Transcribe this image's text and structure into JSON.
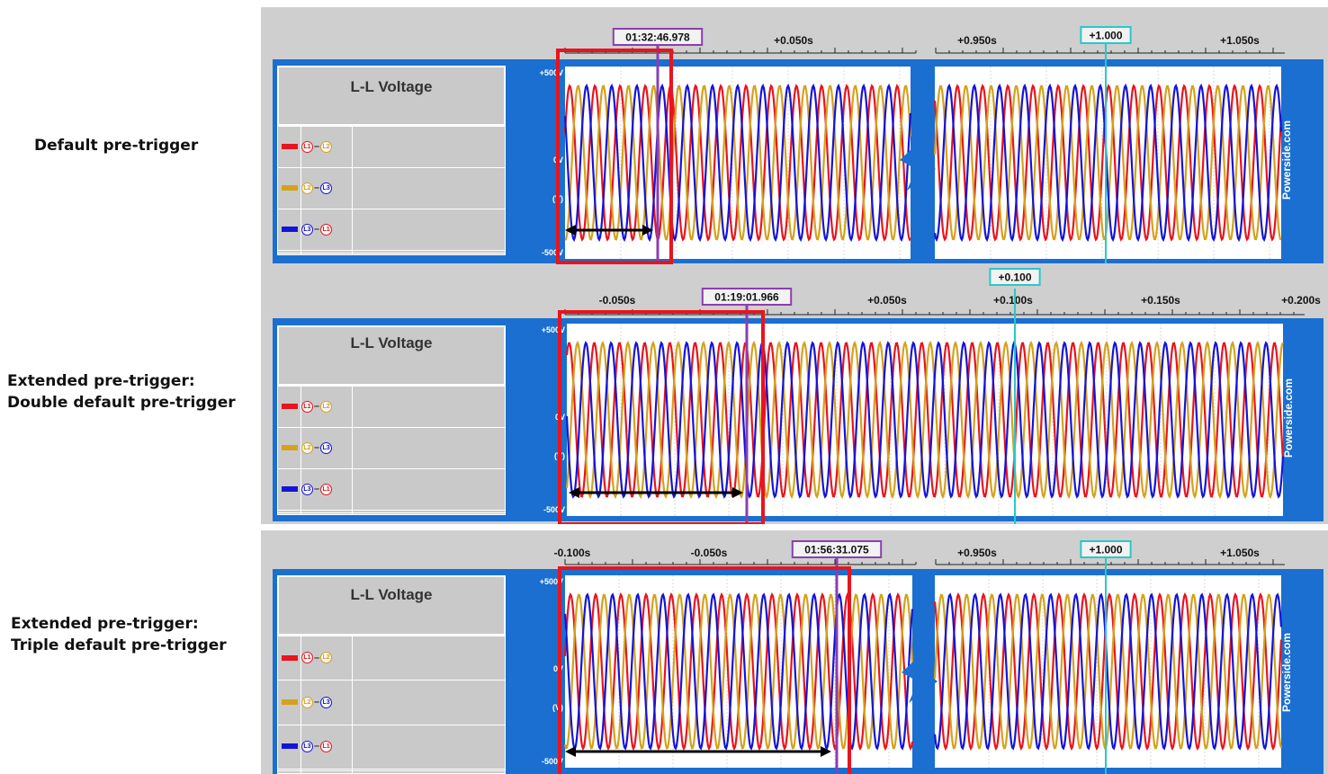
{
  "side_labels": {
    "default": "Default pre-trigger",
    "double_line1": "Extended pre-trigger:",
    "double_line2": "Double default pre-trigger",
    "triple_line1": "Extended pre-trigger:",
    "triple_line2": "Triple default pre-trigger"
  },
  "colors": {
    "l1_l2": "#e8141e",
    "l2_l3": "#d4a21c",
    "l3_l1": "#1414d8",
    "frame": "#1a6fd0",
    "trigger_cursor": "#8a3fb0",
    "reference_cursor": "#28c8c8",
    "highlight": "#e8141e"
  },
  "chart_data": [
    {
      "type": "line",
      "title": "L-L Voltage",
      "legend": [
        "L1-L2",
        "L2-L3",
        "L3-L1"
      ],
      "y_ticks": [
        "+500V",
        "0V",
        "(V)",
        "-500V"
      ],
      "ylim": [
        -500,
        500
      ],
      "series_amplitude_v": 400,
      "frequency_hz": 60,
      "trigger_time_label": "01:32:46.978",
      "reference_label": "+1.000",
      "time_labels_left": [
        "+0.050s"
      ],
      "time_labels_right": [
        "+0.950s",
        "+1.050s"
      ],
      "split_time_axis": true,
      "watermark": "Powerside.com"
    },
    {
      "type": "line",
      "title": "L-L Voltage",
      "legend": [
        "L1-L2",
        "L2-L3",
        "L3-L1"
      ],
      "y_ticks": [
        "+500V",
        "0V",
        "(V)",
        "-500V"
      ],
      "ylim": [
        -500,
        500
      ],
      "series_amplitude_v": 400,
      "frequency_hz": 60,
      "trigger_time_label": "01:19:01.966",
      "reference_label": "+0.100",
      "time_labels": [
        "-0.050s",
        "+0.050s",
        "+0.100s",
        "+0.150s",
        "+0.200s"
      ],
      "split_time_axis": false,
      "watermark": "Powerside.com"
    },
    {
      "type": "line",
      "title": "L-L Voltage",
      "legend": [
        "L1-L2",
        "L2-L3",
        "L3-L1"
      ],
      "y_ticks": [
        "+500V",
        "0V",
        "(V)",
        "-500V"
      ],
      "ylim": [
        -500,
        500
      ],
      "series_amplitude_v": 400,
      "frequency_hz": 60,
      "trigger_time_label": "01:56:31.075",
      "reference_label": "+1.000",
      "time_labels_left": [
        "-0.100s",
        "-0.050s"
      ],
      "time_labels_right": [
        "+0.950s",
        "+1.050s"
      ],
      "split_time_axis": true,
      "watermark": "Powerside.com"
    }
  ]
}
